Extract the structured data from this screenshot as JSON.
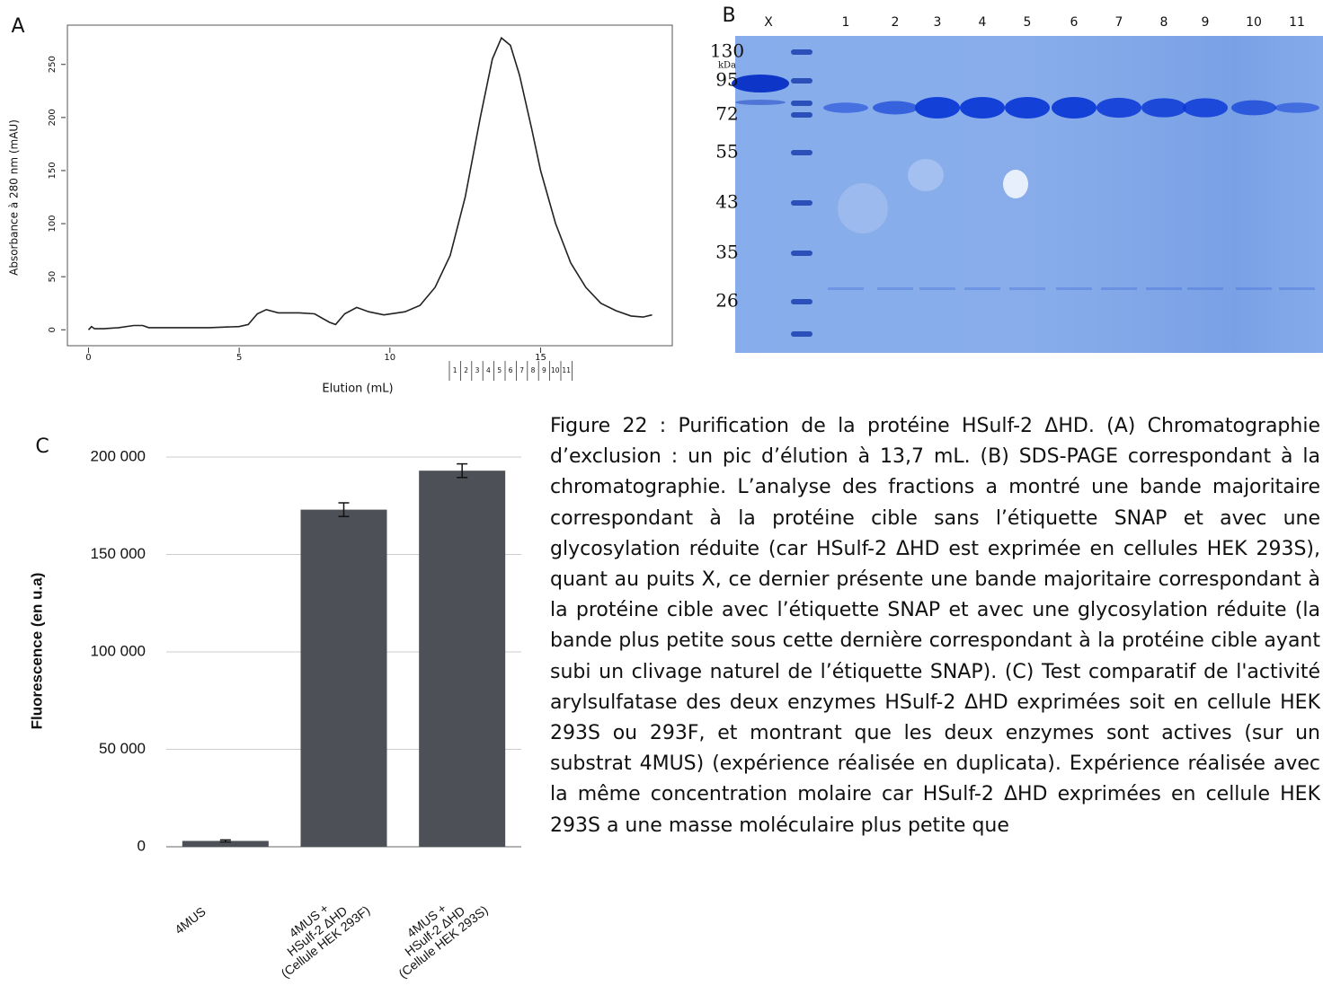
{
  "chart_data": [
    {
      "type": "line",
      "panel_label": "A",
      "ylabel": "Absorbance à 280 nm (mAU)",
      "xlabel": "Elution (mL)",
      "x": [
        0,
        0.1,
        0.2,
        0.5,
        1,
        1.5,
        1.8,
        2,
        3,
        4,
        5,
        5.3,
        5.6,
        5.9,
        6.3,
        7,
        7.5,
        8,
        8.2,
        8.5,
        8.9,
        9.3,
        9.8,
        10.5,
        11,
        11.5,
        12,
        12.5,
        13,
        13.4,
        13.7,
        14,
        14.3,
        14.7,
        15,
        15.5,
        16,
        16.5,
        17,
        17.5,
        18,
        18.4,
        18.7
      ],
      "values": [
        0,
        3,
        1,
        1,
        2,
        4,
        4,
        2,
        2,
        2,
        3,
        5,
        15,
        19,
        16,
        16,
        15,
        7,
        5,
        15,
        21,
        17,
        14,
        17,
        23,
        40,
        70,
        125,
        200,
        255,
        275,
        268,
        240,
        190,
        150,
        100,
        63,
        40,
        25,
        18,
        13,
        12,
        14
      ],
      "color": "#222222",
      "xlim": [
        -0.7,
        19.37
      ],
      "ylim": [
        -15,
        287
      ],
      "xticks": [
        0,
        5,
        10,
        15
      ],
      "yticks": [
        0,
        50,
        100,
        150,
        200,
        250
      ],
      "fraction_labels": [
        "1",
        "2",
        "3",
        "4",
        "5",
        "6",
        "7",
        "8",
        "9",
        "10",
        "11"
      ]
    },
    {
      "type": "bar",
      "panel_label": "C",
      "ylabel": "Fluorescence (en u.a)",
      "categories": [
        "4MUS",
        "4MUS +\nHSulf-2 ΔHD\n(Cellule HEK 293F)",
        "4MUS +\nHSulf-2 ΔHD\n(Cellule HEK 293S)"
      ],
      "values": [
        3000,
        173000,
        193000
      ],
      "errors": [
        500,
        3500,
        3500
      ],
      "color": "#4d5057",
      "ylim": [
        0,
        200000
      ],
      "yticks": [
        {
          "value": 0,
          "label": "0"
        },
        {
          "value": 50000,
          "label": "50 000"
        },
        {
          "value": 100000,
          "label": "100 000"
        },
        {
          "value": 150000,
          "label": "150 000"
        },
        {
          "value": 200000,
          "label": "200 000"
        }
      ],
      "grid": true
    }
  ],
  "gel": {
    "panel_label": "B",
    "lane_labels": [
      "X",
      "1",
      "2",
      "3",
      "4",
      "5",
      "6",
      "7",
      "8",
      "9",
      "10",
      "11"
    ],
    "marker_labels": [
      "130",
      "kDa",
      "95",
      "72",
      "55",
      "43",
      "35",
      "26"
    ]
  },
  "caption": "Figure 22 : Purification de la protéine HSulf-2 ΔHD. (A) Chromatographie d’exclusion : un pic d’élution à 13,7 mL. (B) SDS-PAGE correspondant à la chromatographie. L’analyse des fractions a montré une bande majoritaire correspondant à la protéine cible sans l’étiquette SNAP et avec une glycosylation réduite (car HSulf-2 ΔHD est exprimée en cellules HEK 293S), quant au puits X, ce dernier présente une bande majoritaire correspondant à la protéine cible avec l’étiquette SNAP et avec une glycosylation réduite (la bande plus petite sous cette dernière correspondant à la protéine cible ayant subi un clivage naturel de l’étiquette SNAP). (C) Test comparatif de l'activité arylsulfatase des deux enzymes HSulf-2 ΔHD exprimées soit en cellule HEK 293S ou 293F, et montrant que les deux enzymes sont actives (sur un substrat 4MUS) (expérience réalisée en duplicata). Expérience réalisée avec la même concentration molaire car HSulf-2 ΔHD exprimées en cellule HEK 293S a une masse moléculaire plus petite que"
}
